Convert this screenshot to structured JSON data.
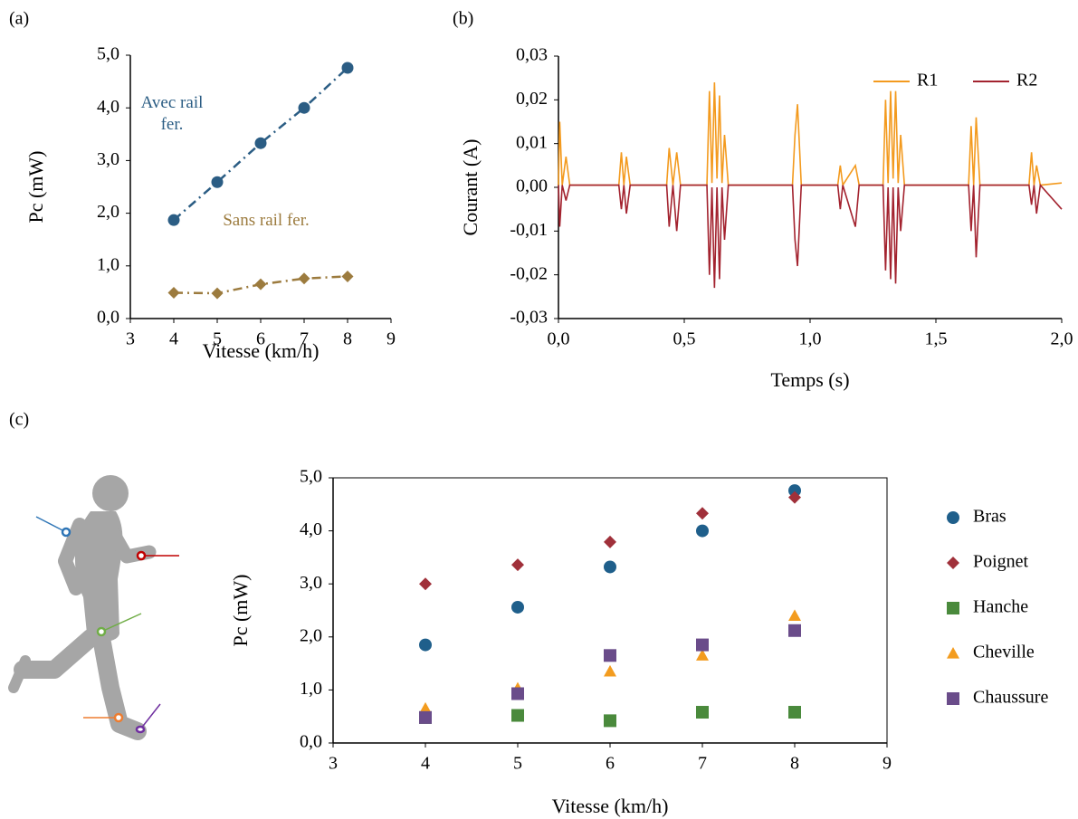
{
  "chart_data": [
    {
      "type": "line",
      "panel": "(a)",
      "x_label": "Vitesse (km/h)",
      "y_label": "Pc (mW)",
      "x": [
        4,
        5,
        6,
        7,
        8
      ],
      "series": [
        {
          "name": "Avec rail fer.",
          "color": "#2b5d84",
          "marker": "circle",
          "line_style": "dashdot",
          "values": [
            1.87,
            2.59,
            3.33,
            4.0,
            4.76
          ]
        },
        {
          "name": "Sans rail fer.",
          "color": "#9c7b3e",
          "marker": "diamond",
          "line_style": "dashdot",
          "values": [
            0.49,
            0.48,
            0.65,
            0.76,
            0.8
          ]
        }
      ],
      "xlim": [
        3,
        9
      ],
      "xticks": [
        3,
        4,
        5,
        6,
        7,
        8,
        9
      ],
      "ylim": [
        0,
        5
      ],
      "yticks": [
        {
          "value": 0,
          "label": "0,0"
        },
        {
          "value": 1,
          "label": "1,0"
        },
        {
          "value": 2,
          "label": "2,0"
        },
        {
          "value": 3,
          "label": "3,0"
        },
        {
          "value": 4,
          "label": "4,0"
        },
        {
          "value": 5,
          "label": "5,0"
        }
      ],
      "legend": "annotation",
      "frame": false
    },
    {
      "type": "line",
      "panel": "(b)",
      "x_label": "Temps (s)",
      "y_label": "Courant (A)",
      "x": [
        0,
        0.005,
        0.015,
        0.03,
        0.045,
        0.1,
        0.24,
        0.25,
        0.26,
        0.27,
        0.285,
        0.43,
        0.44,
        0.455,
        0.47,
        0.485,
        0.59,
        0.6,
        0.61,
        0.62,
        0.63,
        0.64,
        0.65,
        0.66,
        0.675,
        0.8,
        0.93,
        0.94,
        0.95,
        0.965,
        1.11,
        1.12,
        1.13,
        1.18,
        1.195,
        1.29,
        1.3,
        1.31,
        1.32,
        1.33,
        1.34,
        1.35,
        1.36,
        1.375,
        1.5,
        1.63,
        1.64,
        1.65,
        1.66,
        1.675,
        1.87,
        1.88,
        1.89,
        1.9,
        1.915,
        2.0
      ],
      "series": [
        {
          "name": "R1",
          "color": "#f39a1e",
          "values": [
            0.0005,
            0.015,
            0.0005,
            0.007,
            0.0005,
            0.0005,
            0.0005,
            0.008,
            0.0005,
            0.007,
            0.0005,
            0.0005,
            0.009,
            0.0005,
            0.008,
            0.0005,
            0.0005,
            0.022,
            0.001,
            0.024,
            0.002,
            0.021,
            0.001,
            0.012,
            0.0005,
            0.0005,
            0.0005,
            0.012,
            0.019,
            0.0005,
            0.0005,
            0.005,
            0.0005,
            0.005,
            0.0005,
            0.0005,
            0.02,
            0.001,
            0.022,
            0.002,
            0.022,
            0.001,
            0.012,
            0.0005,
            0.0005,
            0.0005,
            0.014,
            0.0005,
            0.016,
            0.0005,
            0.0005,
            0.008,
            0.0005,
            0.005,
            0.0005,
            0.001
          ]
        },
        {
          "name": "R2",
          "color": "#a3232f",
          "values": [
            0.0005,
            -0.009,
            0.0005,
            -0.003,
            0.0005,
            0.0005,
            0.0005,
            -0.005,
            0.0005,
            -0.006,
            0.0005,
            0.0005,
            -0.009,
            0.0005,
            -0.01,
            0.0005,
            0.0005,
            -0.02,
            0,
            -0.023,
            0,
            -0.021,
            0,
            -0.012,
            0.0005,
            0.0005,
            0.0005,
            -0.012,
            -0.018,
            0.0005,
            0.0005,
            -0.005,
            0.0005,
            -0.009,
            0.0005,
            0.0005,
            -0.019,
            0,
            -0.021,
            0,
            -0.022,
            0,
            -0.01,
            0.0005,
            0.0005,
            0.0005,
            -0.01,
            0.0005,
            -0.016,
            0.0005,
            0.0005,
            -0.004,
            0.0005,
            -0.006,
            0.0005,
            -0.005
          ]
        }
      ],
      "xlim": [
        0,
        2
      ],
      "xticks": [
        {
          "value": 0,
          "label": "0,0"
        },
        {
          "value": 0.5,
          "label": "0,5"
        },
        {
          "value": 1,
          "label": "1,0"
        },
        {
          "value": 1.5,
          "label": "1,5"
        },
        {
          "value": 2,
          "label": "2,0"
        }
      ],
      "ylim": [
        -0.03,
        0.03
      ],
      "yticks": [
        {
          "value": -0.03,
          "label": "-0,03"
        },
        {
          "value": -0.02,
          "label": "-0,02"
        },
        {
          "value": -0.01,
          "label": "-0,01"
        },
        {
          "value": 0,
          "label": "0,00"
        },
        {
          "value": 0.01,
          "label": "0,01"
        },
        {
          "value": 0.02,
          "label": "0,02"
        },
        {
          "value": 0.03,
          "label": "0,03"
        }
      ],
      "legend": "top-right",
      "frame": false
    },
    {
      "type": "scatter",
      "panel": "(c)",
      "x_label": "Vitesse (km/h)",
      "y_label": "Pc (mW)",
      "x": [
        4,
        5,
        6,
        7,
        8
      ],
      "series": [
        {
          "name": "Bras",
          "color": "#1f5f8b",
          "marker": "circle",
          "values": [
            1.85,
            2.56,
            3.32,
            4.0,
            4.76
          ]
        },
        {
          "name": "Poignet",
          "color": "#a0303a",
          "marker": "diamond",
          "values": [
            3.0,
            3.36,
            3.79,
            4.33,
            4.63
          ]
        },
        {
          "name": "Hanche",
          "color": "#4a8a3c",
          "marker": "square",
          "values": [
            0.48,
            0.52,
            0.42,
            0.58,
            0.58
          ]
        },
        {
          "name": "Cheville",
          "color": "#f39c1f",
          "marker": "triangle",
          "values": [
            0.65,
            1.03,
            1.35,
            1.65,
            2.4
          ]
        },
        {
          "name": "Chaussure",
          "color": "#6a4c8a",
          "marker": "square",
          "values": [
            0.48,
            0.93,
            1.65,
            1.85,
            2.12
          ]
        }
      ],
      "xlim": [
        3,
        9
      ],
      "xticks": [
        3,
        4,
        5,
        6,
        7,
        8,
        9
      ],
      "ylim": [
        0,
        5
      ],
      "yticks": [
        {
          "value": 0,
          "label": "0,0"
        },
        {
          "value": 1,
          "label": "1,0"
        },
        {
          "value": 2,
          "label": "2,0"
        },
        {
          "value": 3,
          "label": "3,0"
        },
        {
          "value": 4,
          "label": "4,0"
        },
        {
          "value": 5,
          "label": "5,0"
        }
      ],
      "legend": "right",
      "frame": true
    }
  ]
}
